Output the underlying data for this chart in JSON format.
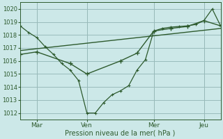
{
  "xlabel": "Pression niveau de la mer( hPa )",
  "ylim": [
    1011.5,
    1020.5
  ],
  "yticks": [
    1012,
    1013,
    1014,
    1015,
    1016,
    1017,
    1018,
    1019,
    1020
  ],
  "bg_color": "#cce8e8",
  "grid_color": "#99bbbb",
  "line_color": "#2d5a2d",
  "xtick_labels": [
    "Mar",
    "Ven",
    "Mer",
    "Jeu"
  ],
  "xtick_positions": [
    16,
    64,
    128,
    176
  ],
  "xlim": [
    0,
    192
  ],
  "line_jagged_x": [
    0,
    8,
    16,
    24,
    32,
    40,
    48,
    56,
    64,
    72,
    80,
    88,
    96,
    104,
    112,
    120,
    128,
    136,
    144,
    152,
    160,
    168,
    176,
    184,
    192
  ],
  "line_jagged_y": [
    1018.7,
    1018.2,
    1017.8,
    1017.1,
    1016.5,
    1015.8,
    1015.3,
    1014.5,
    1012.0,
    1012.0,
    1012.8,
    1013.4,
    1013.7,
    1014.1,
    1015.3,
    1016.1,
    1018.3,
    1018.5,
    1018.6,
    1018.65,
    1018.7,
    1018.8,
    1019.1,
    1020.0,
    1018.7
  ],
  "line_smooth_x": [
    0,
    16,
    48,
    64,
    96,
    112,
    128,
    144,
    160,
    176,
    192
  ],
  "line_smooth_y": [
    1016.5,
    1016.7,
    1015.8,
    1015.0,
    1016.0,
    1016.6,
    1018.3,
    1018.5,
    1018.65,
    1019.1,
    1018.7
  ],
  "line_trend_x": [
    0,
    192
  ],
  "line_trend_y": [
    1016.8,
    1018.5
  ]
}
